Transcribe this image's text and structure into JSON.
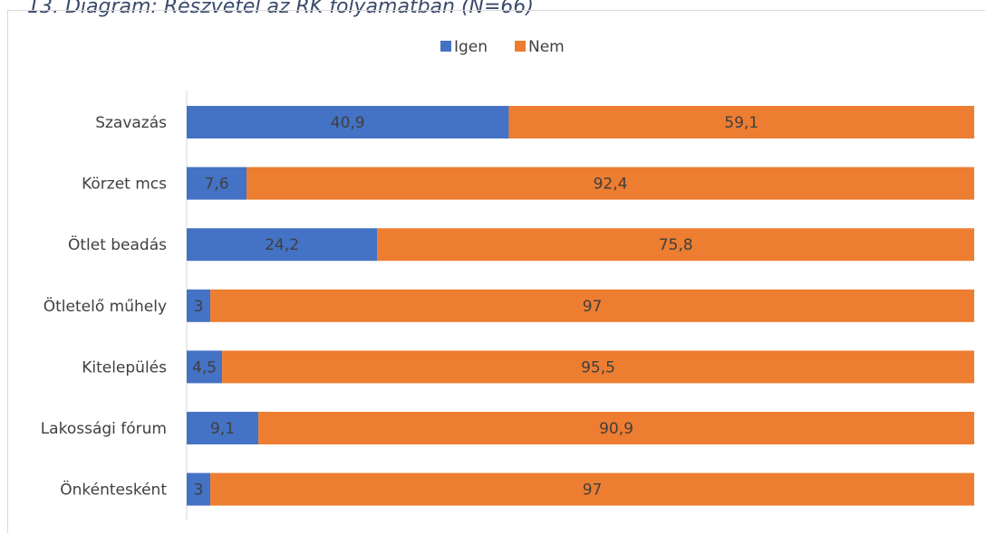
{
  "caption": "13. Diagram: Részvétel az RK folyamatban (N=66)",
  "chart_data": {
    "type": "bar",
    "orientation": "horizontal",
    "stacked": true,
    "categories": [
      "Szavazás",
      "Körzet mcs",
      "Ötlet beadás",
      "Ötletelő műhely",
      "Kitelepülés",
      "Lakossági fórum",
      "Önkéntesként"
    ],
    "series": [
      {
        "name": "Igen",
        "color": "#4472c4",
        "values": [
          40.9,
          7.6,
          24.2,
          3,
          4.5,
          9.1,
          3
        ],
        "labels": [
          "40,9",
          "7,6",
          "24,2",
          "3",
          "4,5",
          "9,1",
          "3"
        ]
      },
      {
        "name": "Nem",
        "color": "#ed7d31",
        "values": [
          59.1,
          92.4,
          75.8,
          97,
          95.5,
          90.9,
          97
        ],
        "labels": [
          "59,1",
          "92,4",
          "75,8",
          "97",
          "95,5",
          "90,9",
          "97"
        ]
      }
    ],
    "xlim": [
      0,
      100
    ],
    "grid": false,
    "legend_position": "top"
  }
}
